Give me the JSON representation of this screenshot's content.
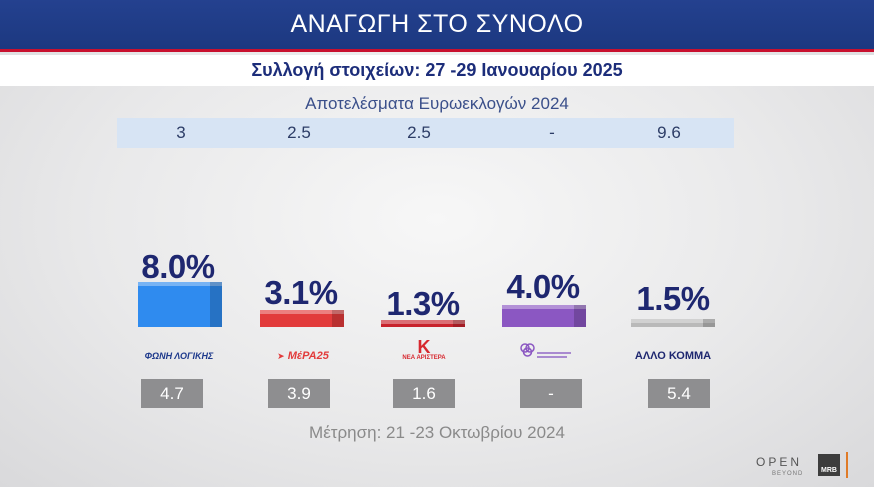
{
  "header": {
    "title": "ΑΝΑΓΩΓΗ ΣΤΟ ΣΥΝΟΛΟ"
  },
  "subheader": {
    "text": "Συλλογή στοιχείων: 27 -29 Ιανουαρίου 2025"
  },
  "euro_results": {
    "title": "Αποτελέσματα Ευρωεκλογών 2024",
    "values": [
      "3",
      "2.5",
      "2.5",
      "-",
      "9.6"
    ]
  },
  "previous_poll": {
    "label": "Μέτρηση: 21 -23 Οκτωβρίου 2024",
    "values": [
      "4.7",
      "3.9",
      "1.6",
      "-",
      "5.4"
    ]
  },
  "chart_data": {
    "type": "bar",
    "categories": [
      "ΦΩΝΗ ΛΟΓΙΚΗΣ",
      "ΜέΡΑ25",
      "ΝΕΑ ΑΡΙΣΤΕΡΑ",
      "",
      "ΑΛΛΟ ΚΟΜΜΑ"
    ],
    "values": [
      8.0,
      3.1,
      1.3,
      4.0,
      1.5
    ],
    "labels": [
      "8.0%",
      "3.1%",
      "1.3%",
      "4.0%",
      "1.5%"
    ],
    "colors": [
      "#2f8bef",
      "#e23b3b",
      "#c8232c",
      "#8b57c2",
      "#b9b9b9"
    ]
  },
  "brand": {
    "open": "OPEN",
    "beyond": "BEYOND",
    "mrb": "MRB"
  }
}
